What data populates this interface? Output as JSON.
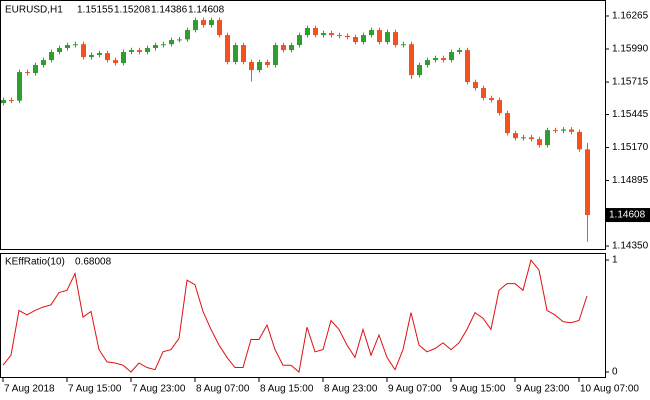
{
  "chart_data": [
    {
      "type": "candlestick",
      "title": "EURUSD,H1",
      "up_color": "#2e9e2e",
      "down_color": "#f4511e",
      "ylim": [
        1.14317,
        1.16398
      ],
      "yticks": [
        1.16265,
        {
          "value": 1.1599,
          "label": "1.15990"
        },
        1.15715,
        1.15445,
        {
          "value": 1.1517,
          "label": "1.15170"
        },
        1.14895,
        {
          "value": 1.1435,
          "label": "1.14350"
        }
      ],
      "open": [
        1.1554,
        1.15565,
        1.1556,
        1.15798,
        1.1579,
        1.15857,
        1.15898,
        1.15965,
        1.15998,
        1.16023,
        1.1603,
        1.15923,
        1.1594,
        1.15956,
        1.15898,
        1.15873,
        1.15965,
        1.15981,
        1.15965,
        1.15998,
        1.16023,
        1.1603,
        1.16065,
        1.1607,
        1.16148,
        1.16231,
        1.1619,
        1.16231,
        1.16106,
        1.15882,
        1.16023,
        1.15882,
        1.15815,
        1.15882,
        1.15857,
        1.16023,
        1.15981,
        1.16023,
        1.16106,
        1.16165,
        1.16106,
        1.16123,
        1.16106,
        1.161,
        1.1609,
        1.16048,
        1.16106,
        1.16148,
        1.16048,
        1.16131,
        1.16023,
        1.1603,
        1.15773,
        1.15857,
        1.15898,
        1.15915,
        1.15898,
        1.15965,
        1.15981,
        1.15715,
        1.15665,
        1.15582,
        1.15565,
        1.15457,
        1.1529,
        1.15248,
        1.15255,
        1.1524,
        1.1519,
        1.15315,
        1.1531,
        1.1532,
        1.153,
        1.15155
      ],
      "high": [
        1.15585,
        1.15585,
        1.15818,
        1.15818,
        1.15877,
        1.15918,
        1.15985,
        1.16018,
        1.16043,
        1.1605,
        1.1605,
        1.1596,
        1.15976,
        1.15976,
        1.15918,
        1.15985,
        1.16001,
        1.16001,
        1.16018,
        1.16043,
        1.1605,
        1.16085,
        1.1609,
        1.16168,
        1.16251,
        1.16251,
        1.16251,
        1.16251,
        1.16126,
        1.16043,
        1.16043,
        1.15902,
        1.15902,
        1.15902,
        1.16043,
        1.16043,
        1.16043,
        1.16126,
        1.16185,
        1.16185,
        1.16143,
        1.16143,
        1.16126,
        1.1612,
        1.1611,
        1.16126,
        1.16168,
        1.16168,
        1.16151,
        1.16151,
        1.1605,
        1.1605,
        1.15877,
        1.15918,
        1.15935,
        1.15935,
        1.15985,
        1.16001,
        1.16001,
        1.15735,
        1.15685,
        1.15602,
        1.15585,
        1.15477,
        1.1531,
        1.15275,
        1.15275,
        1.1526,
        1.15335,
        1.15335,
        1.1534,
        1.1534,
        1.1532,
        1.15208
      ],
      "low": [
        1.1552,
        1.1554,
        1.1554,
        1.1577,
        1.1577,
        1.15837,
        1.15878,
        1.15945,
        1.15978,
        1.16003,
        1.15903,
        1.15903,
        1.1592,
        1.15878,
        1.15853,
        1.15853,
        1.15945,
        1.15945,
        1.15945,
        1.15978,
        1.16003,
        1.1601,
        1.16045,
        1.1605,
        1.16128,
        1.1617,
        1.1617,
        1.16086,
        1.15862,
        1.15862,
        1.15862,
        1.1572,
        1.15795,
        1.15837,
        1.15837,
        1.15961,
        1.15961,
        1.16003,
        1.16086,
        1.16086,
        1.16086,
        1.16086,
        1.1608,
        1.1607,
        1.16028,
        1.16028,
        1.16086,
        1.16028,
        1.16028,
        1.16003,
        1.16003,
        1.1574,
        1.15753,
        1.15837,
        1.15878,
        1.15878,
        1.15878,
        1.15945,
        1.15695,
        1.15645,
        1.15562,
        1.15545,
        1.15437,
        1.1527,
        1.15228,
        1.15228,
        1.1522,
        1.1517,
        1.1517,
        1.1529,
        1.1529,
        1.1528,
        1.15135,
        1.14386
      ],
      "close": [
        1.15565,
        1.1556,
        1.15798,
        1.1579,
        1.15857,
        1.15898,
        1.15965,
        1.15998,
        1.16023,
        1.1603,
        1.15923,
        1.1594,
        1.15956,
        1.15898,
        1.15873,
        1.15965,
        1.15981,
        1.15965,
        1.15998,
        1.16023,
        1.1603,
        1.16065,
        1.1607,
        1.16148,
        1.16231,
        1.1619,
        1.16231,
        1.16106,
        1.15882,
        1.16023,
        1.15882,
        1.15815,
        1.15882,
        1.15857,
        1.16023,
        1.15981,
        1.16023,
        1.16106,
        1.16165,
        1.16106,
        1.16123,
        1.16106,
        1.161,
        1.1609,
        1.16048,
        1.16106,
        1.16148,
        1.16048,
        1.16131,
        1.16023,
        1.1603,
        1.15773,
        1.15857,
        1.15898,
        1.15915,
        1.15898,
        1.15965,
        1.15981,
        1.15715,
        1.15665,
        1.15582,
        1.15565,
        1.15457,
        1.1529,
        1.15248,
        1.15255,
        1.1524,
        1.1519,
        1.15315,
        1.1531,
        1.1532,
        1.153,
        1.15155,
        1.14608
      ]
    },
    {
      "type": "line",
      "title": "KEffRatio(10)",
      "color": "#e01010",
      "ylim": [
        -0.054,
        1.063
      ],
      "yticks": [
        0,
        1
      ],
      "categories": [
        "7 Aug 2018",
        null,
        null,
        null,
        null,
        null,
        null,
        null,
        "7 Aug 15:00",
        null,
        null,
        null,
        null,
        null,
        null,
        null,
        "7 Aug 23:00",
        null,
        null,
        null,
        null,
        null,
        null,
        null,
        "8 Aug 07:00",
        null,
        null,
        null,
        null,
        null,
        null,
        null,
        "8 Aug 15:00",
        null,
        null,
        null,
        null,
        null,
        null,
        null,
        "8 Aug 23:00",
        null,
        null,
        null,
        null,
        null,
        null,
        null,
        "9 Aug 07:00",
        null,
        null,
        null,
        null,
        null,
        null,
        null,
        "9 Aug 15:00",
        null,
        null,
        null,
        null,
        null,
        null,
        null,
        "9 Aug 23:00",
        null,
        null,
        null,
        null,
        null,
        null,
        null,
        "10 Aug 07:00",
        null
      ],
      "values": [
        0.06,
        0.15,
        0.55,
        0.51,
        0.55,
        0.58,
        0.6,
        0.71,
        0.73,
        0.88,
        0.49,
        0.54,
        0.2,
        0.09,
        0.08,
        0.06,
        0,
        0.08,
        0.04,
        0.02,
        0.18,
        0.2,
        0.3,
        0.82,
        0.78,
        0.54,
        0.38,
        0.24,
        0.13,
        0.04,
        0.04,
        0.29,
        0.29,
        0.42,
        0.2,
        0.06,
        0.06,
        0,
        0.4,
        0.18,
        0.2,
        0.46,
        0.38,
        0.24,
        0.13,
        0.38,
        0.15,
        0.33,
        0.13,
        0.02,
        0.2,
        0.53,
        0.24,
        0.18,
        0.21,
        0.26,
        0.2,
        0.26,
        0.38,
        0.53,
        0.48,
        0.38,
        0.73,
        0.79,
        0.79,
        0.73,
        1,
        0.91,
        0.55,
        0.51,
        0.45,
        0.44,
        0.46,
        0.68008
      ]
    }
  ]
}
